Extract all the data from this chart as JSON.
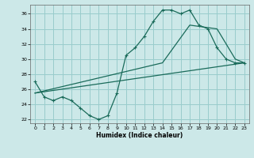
{
  "xlabel": "Humidex (Indice chaleur)",
  "ylabel": "",
  "xlim": [
    -0.5,
    23.5
  ],
  "ylim": [
    21.5,
    37.2
  ],
  "yticks": [
    22,
    24,
    26,
    28,
    30,
    32,
    34,
    36
  ],
  "xticks": [
    0,
    1,
    2,
    3,
    4,
    5,
    6,
    7,
    8,
    9,
    10,
    11,
    12,
    13,
    14,
    15,
    16,
    17,
    18,
    19,
    20,
    21,
    22,
    23
  ],
  "bg_color": "#cce8e8",
  "grid_color": "#99cccc",
  "line_color": "#1a6b5a",
  "line1_x": [
    0,
    1,
    2,
    3,
    4,
    5,
    6,
    7,
    8,
    9,
    10,
    11,
    12,
    13,
    14,
    15,
    16,
    17,
    18,
    19,
    20,
    21,
    22,
    23
  ],
  "line1_y": [
    27,
    25,
    24.5,
    25,
    24.5,
    23.5,
    22.5,
    22,
    22.5,
    25.5,
    30.5,
    31.5,
    33,
    35,
    36.5,
    36.5,
    36,
    36.5,
    34.5,
    34,
    31.5,
    30,
    29.5,
    29.5
  ],
  "line2_x": [
    0,
    23
  ],
  "line2_y": [
    25.5,
    29.5
  ],
  "line3_x": [
    0,
    14,
    17,
    20,
    22,
    23
  ],
  "line3_y": [
    25.5,
    29.5,
    34.5,
    34,
    30,
    29.5
  ]
}
